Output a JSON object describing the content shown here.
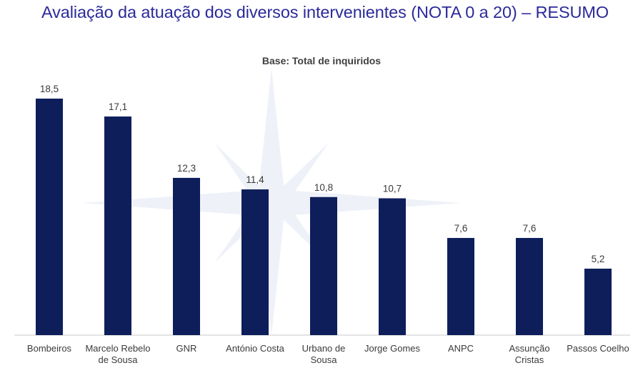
{
  "title": "Avaliação da atuação dos diversos intervenientes (NOTA 0 a 20) – RESUMO",
  "chart_data": {
    "type": "bar",
    "title": "Base: Total de inquiridos",
    "xlabel": "",
    "ylabel": "",
    "ylim": [
      0,
      20
    ],
    "grid": false,
    "legend": "none",
    "bar_color": "#0e1e5b",
    "categories": [
      [
        "Bombeiros"
      ],
      [
        "Marcelo Rebelo",
        "de Sousa"
      ],
      [
        "GNR"
      ],
      [
        "António Costa"
      ],
      [
        "Urbano de",
        "Sousa"
      ],
      [
        "Jorge Gomes"
      ],
      [
        "ANPC"
      ],
      [
        "Assunção",
        "Cristas"
      ],
      [
        "Passos Coelho"
      ]
    ],
    "values": [
      18.5,
      17.1,
      12.3,
      11.4,
      10.8,
      10.7,
      7.6,
      7.6,
      5.2
    ],
    "value_labels": [
      "18,5",
      "17,1",
      "12,3",
      "11,4",
      "10,8",
      "10,7",
      "7,6",
      "7,6",
      "5,2"
    ]
  }
}
